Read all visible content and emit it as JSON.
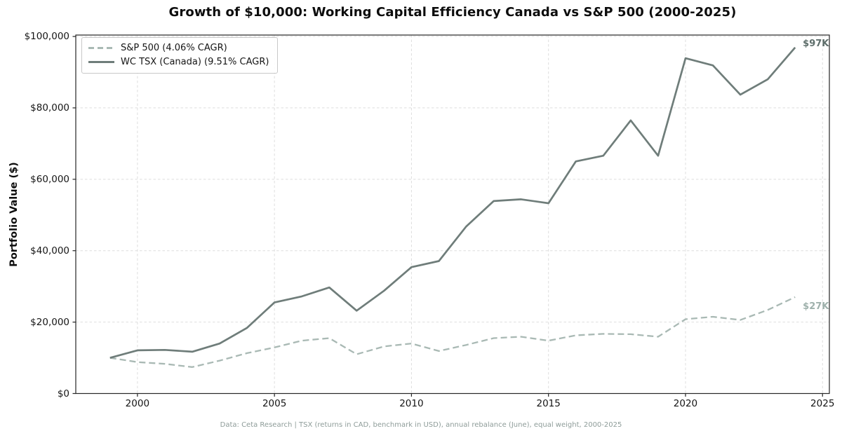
{
  "title": "Growth of $10,000: Working Capital Efficiency Canada vs S&P 500 (2000-2025)",
  "footer": "Data: Ceta Research | TSX (returns in CAD, benchmark in USD), annual rebalance (June), equal weight, 2000-2025",
  "chart_data": {
    "type": "line",
    "title": "Growth of $10,000: Working Capital Efficiency Canada vs S&P 500 (2000-2025)",
    "xlabel": "",
    "ylabel": "Portfolio Value ($)",
    "x": [
      1999,
      2000,
      2001,
      2002,
      2003,
      2004,
      2005,
      2006,
      2007,
      2008,
      2009,
      2010,
      2011,
      2012,
      2013,
      2014,
      2015,
      2016,
      2017,
      2018,
      2019,
      2020,
      2021,
      2022,
      2023,
      2024
    ],
    "series": [
      {
        "name": "S&P 500 (4.06% CAGR)",
        "style": "dashed",
        "color": "#a9b9b4",
        "end_label": "$27K",
        "end_label_color": "#9fb1ac",
        "values": [
          10000,
          8800,
          8300,
          7400,
          9200,
          11300,
          12900,
          14800,
          15500,
          11000,
          13200,
          14000,
          11900,
          13600,
          15500,
          15900,
          14800,
          16300,
          16700,
          16600,
          15900,
          20800,
          21500,
          20600,
          23400,
          27000
        ]
      },
      {
        "name": "WC TSX (Canada) (9.51% CAGR)",
        "style": "solid",
        "color": "#6f7d7a",
        "end_label": "$97K",
        "end_label_color": "#5e6e6b",
        "values": [
          10000,
          12100,
          12200,
          11700,
          14000,
          18400,
          25500,
          27200,
          29700,
          23200,
          28800,
          35400,
          37100,
          46800,
          53900,
          54400,
          53300,
          65000,
          66600,
          76500,
          66600,
          93900,
          91900,
          83700,
          88000,
          96900
        ]
      }
    ],
    "xlim": [
      1997.75,
      2025.25
    ],
    "ylim": [
      0,
      100400
    ],
    "x_ticks": [
      2000,
      2005,
      2010,
      2015,
      2020,
      2025
    ],
    "y_ticks": [
      0,
      20000,
      40000,
      60000,
      80000,
      100000
    ],
    "y_tick_labels": [
      "$0",
      "$20,000",
      "$40,000",
      "$60,000",
      "$80,000",
      "$100,000"
    ],
    "grid": true,
    "grid_color": "#dedede",
    "spine_color": "#262626",
    "legend_position": "upper left"
  }
}
